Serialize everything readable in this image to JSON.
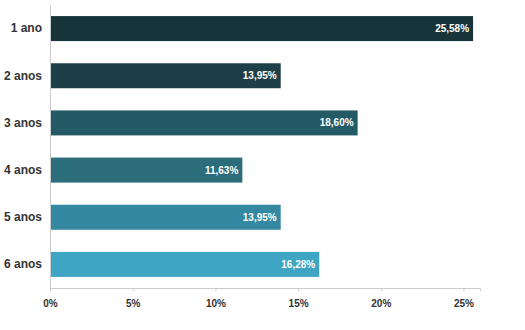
{
  "chart_data": {
    "type": "bar",
    "orientation": "horizontal",
    "categories": [
      "1 ano",
      "2 anos",
      "3 anos",
      "4 anos",
      "5 anos",
      "6 anos"
    ],
    "values": [
      25.58,
      13.95,
      18.6,
      11.63,
      13.95,
      16.28
    ],
    "value_labels": [
      "25,58%",
      "13,95%",
      "18,60%",
      "11,63%",
      "13,95%",
      "16,28%"
    ],
    "colors": [
      "#17343a",
      "#1d4048",
      "#245a65",
      "#2b6d7b",
      "#3488a2",
      "#3fa5c4"
    ],
    "xlim": [
      0,
      26
    ],
    "xticks": [
      {
        "value": 0,
        "label": "0%"
      },
      {
        "value": 5,
        "label": "5%"
      },
      {
        "value": 10,
        "label": "10%"
      },
      {
        "value": 15,
        "label": "15%"
      },
      {
        "value": 20,
        "label": "20%"
      },
      {
        "value": 25,
        "label": "25%"
      }
    ],
    "data_labels": true,
    "grid": false
  }
}
